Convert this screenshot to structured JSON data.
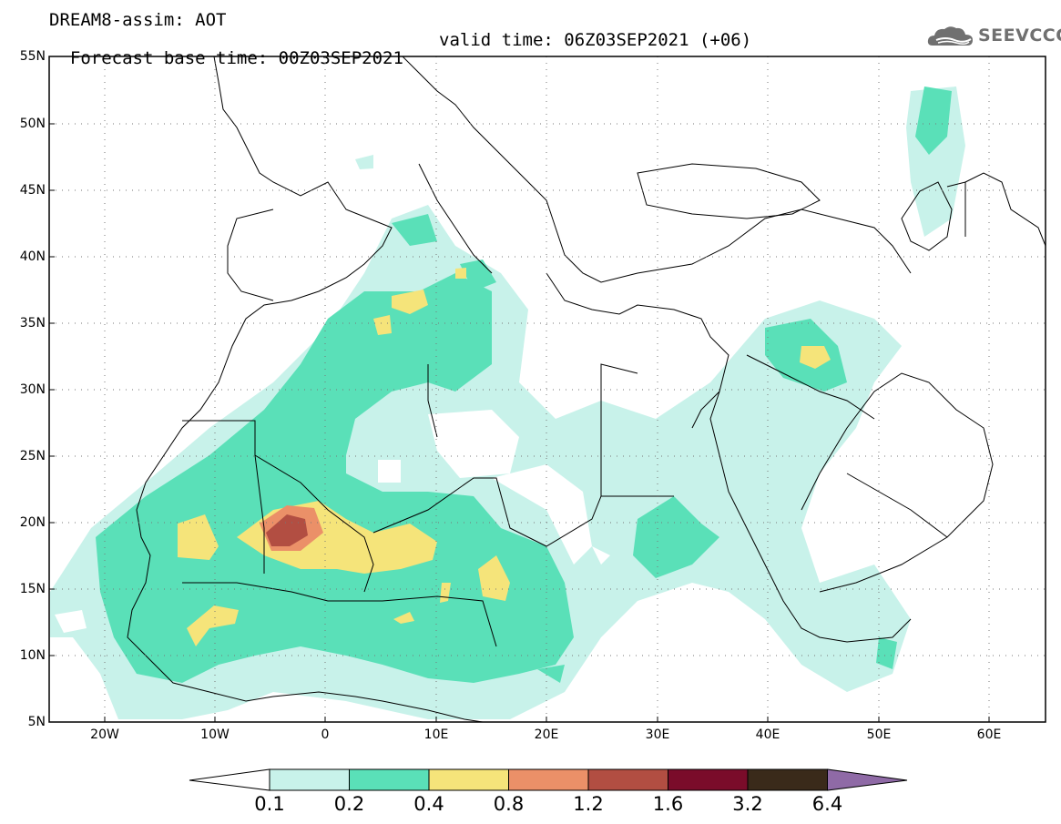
{
  "header": {
    "model_line": "DREAM8-assim: AOT",
    "base_time": "Forecast base time: 00Z03SEP2021",
    "valid_time": "valid time: 06Z03SEP2021 (+06)"
  },
  "logo": {
    "text": "SEEVCCC",
    "icon": "cloud-icon"
  },
  "map": {
    "variable": "AOT",
    "lat_range": [
      5,
      55
    ],
    "lon_range": [
      -25,
      65
    ],
    "lat_labels": [
      "55N",
      "50N",
      "45N",
      "40N",
      "35N",
      "30N",
      "25N",
      "20N",
      "15N",
      "10N",
      "5N"
    ],
    "lon_labels": [
      "20W",
      "10W",
      "0",
      "10E",
      "20E",
      "30E",
      "40E",
      "50E",
      "60E"
    ],
    "grid": "dotted",
    "boundaries": "country borders and coastlines"
  },
  "colorbar": {
    "levels": [
      "0.1",
      "0.2",
      "0.4",
      "0.8",
      "1.2",
      "1.6",
      "3.2",
      "6.4"
    ],
    "colors": [
      "#ffffff",
      "#c8f2ea",
      "#5ae0b8",
      "#f5e47a",
      "#eb9068",
      "#b24e42",
      "#7a0c2a",
      "#3a2a1a",
      "#8f6aa6"
    ]
  }
}
